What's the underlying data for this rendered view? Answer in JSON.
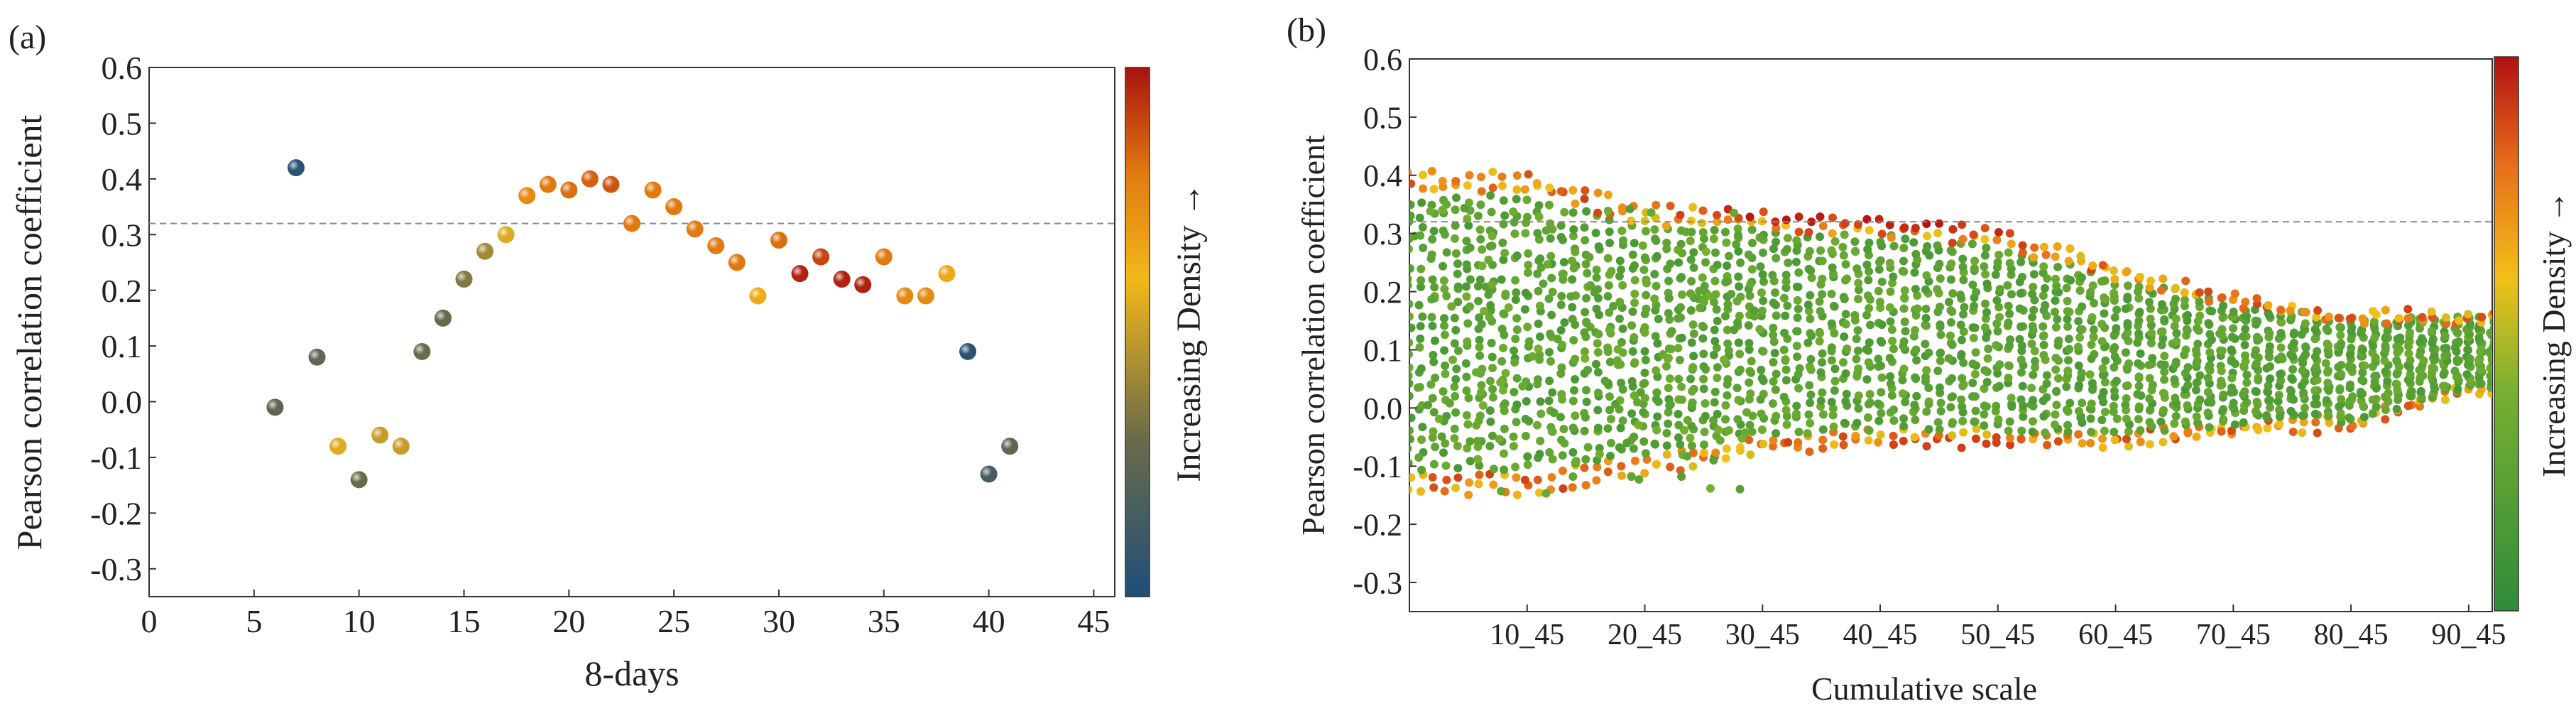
{
  "charts": [
    {
      "panel_label": "(a)",
      "chart_data": {
        "type": "scatter",
        "xlabel": "8-days",
        "ylabel": "Pearson correlation coefficient",
        "xlim": [
          0,
          46
        ],
        "ylim": [
          -0.35,
          0.6
        ],
        "xticks": [
          "0",
          "5",
          "10",
          "15",
          "20",
          "25",
          "30",
          "35",
          "40",
          "45"
        ],
        "yticks": [
          "-0.3",
          "-0.2",
          "-0.1",
          "0.0",
          "0.1",
          "0.2",
          "0.3",
          "0.4",
          "0.5",
          "0.6"
        ],
        "reference_line_y": 0.32,
        "colorbar_label": "Increasing Density →",
        "grid": false,
        "points": [
          {
            "x": 6,
            "y": -0.01,
            "density": 0.25
          },
          {
            "x": 7,
            "y": 0.42,
            "density": 0.05
          },
          {
            "x": 8,
            "y": 0.08,
            "density": 0.25
          },
          {
            "x": 9,
            "y": -0.08,
            "density": 0.55
          },
          {
            "x": 10,
            "y": -0.14,
            "density": 0.3
          },
          {
            "x": 11,
            "y": -0.06,
            "density": 0.5
          },
          {
            "x": 12,
            "y": -0.08,
            "density": 0.5
          },
          {
            "x": 13,
            "y": 0.09,
            "density": 0.3
          },
          {
            "x": 14,
            "y": 0.15,
            "density": 0.28
          },
          {
            "x": 15,
            "y": 0.22,
            "density": 0.35
          },
          {
            "x": 16,
            "y": 0.27,
            "density": 0.42
          },
          {
            "x": 17,
            "y": 0.3,
            "density": 0.55
          },
          {
            "x": 18,
            "y": 0.37,
            "density": 0.75
          },
          {
            "x": 19,
            "y": 0.39,
            "density": 0.8
          },
          {
            "x": 20,
            "y": 0.38,
            "density": 0.82
          },
          {
            "x": 21,
            "y": 0.4,
            "density": 0.85
          },
          {
            "x": 22,
            "y": 0.39,
            "density": 0.87
          },
          {
            "x": 23,
            "y": 0.32,
            "density": 0.8
          },
          {
            "x": 24,
            "y": 0.38,
            "density": 0.8
          },
          {
            "x": 25,
            "y": 0.35,
            "density": 0.8
          },
          {
            "x": 26,
            "y": 0.31,
            "density": 0.8
          },
          {
            "x": 27,
            "y": 0.28,
            "density": 0.8
          },
          {
            "x": 28,
            "y": 0.25,
            "density": 0.8
          },
          {
            "x": 29,
            "y": 0.19,
            "density": 0.65
          },
          {
            "x": 30,
            "y": 0.29,
            "density": 0.82
          },
          {
            "x": 31,
            "y": 0.23,
            "density": 0.97
          },
          {
            "x": 32,
            "y": 0.26,
            "density": 0.9
          },
          {
            "x": 33,
            "y": 0.22,
            "density": 0.97
          },
          {
            "x": 34,
            "y": 0.21,
            "density": 0.97
          },
          {
            "x": 35,
            "y": 0.26,
            "density": 0.8
          },
          {
            "x": 36,
            "y": 0.19,
            "density": 0.75
          },
          {
            "x": 37,
            "y": 0.19,
            "density": 0.75
          },
          {
            "x": 38,
            "y": 0.23,
            "density": 0.65
          },
          {
            "x": 39,
            "y": 0.09,
            "density": 0.05
          },
          {
            "x": 40,
            "y": -0.13,
            "density": 0.15
          },
          {
            "x": 41,
            "y": -0.08,
            "density": 0.25
          }
        ]
      }
    },
    {
      "panel_label": "(b)",
      "chart_data": {
        "type": "scatter",
        "xlabel": "Cumulative scale",
        "ylabel": "Pearson correlation coefficient",
        "ylim": [
          -0.35,
          0.6
        ],
        "yticks": [
          "-0.3",
          "-0.2",
          "-0.1",
          "0.0",
          "0.1",
          "0.2",
          "0.3",
          "0.4",
          "0.5",
          "0.6"
        ],
        "xticks": [
          "10_45",
          "20_45",
          "30_45",
          "40_45",
          "50_45",
          "60_45",
          "70_45",
          "80_45",
          "90_45"
        ],
        "reference_line_y": 0.32,
        "colorbar_label": "Increasing Density →",
        "grid": false,
        "grid_points": "dense band of cumulative-window correlations, upper envelope ~0.40 to ~0.16, lower envelope ~-0.14 to ~0.02",
        "lines": [
          {
            "name": "",
            "x": [
              0,
              10,
              20,
              30,
              40,
              50,
              60,
              70,
              80,
              90,
              96
            ],
            "y_upper": [
              0.4,
              0.4,
              0.34,
              0.33,
              0.32,
              0.3,
              0.24,
              0.19,
              0.16,
              0.16,
              0.16
            ],
            "y_lower": [
              -0.14,
              -0.14,
              -0.11,
              -0.07,
              -0.06,
              -0.06,
              -0.06,
              -0.04,
              -0.03,
              0.03,
              0.02
            ]
          }
        ]
      }
    }
  ]
}
